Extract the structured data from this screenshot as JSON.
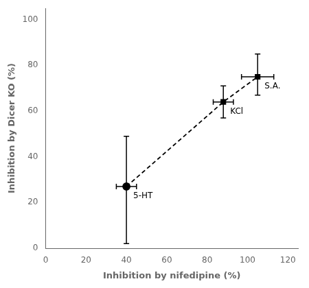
{
  "chart_data": {
    "type": "scatter",
    "xlabel": "Inhibition by nifedipine (%)",
    "ylabel": "Inhibition by Dicer KO (%)",
    "series": [
      {
        "color": "#000000",
        "line_style": "dashed",
        "marker": [
          "circle",
          "square",
          "square"
        ],
        "labels": [
          "5-HT",
          "KCl",
          "S.A."
        ],
        "x": [
          40,
          88,
          105
        ],
        "values": [
          27,
          64,
          75
        ],
        "xerr_minus": [
          5,
          5,
          8
        ],
        "xerr_plus": [
          5,
          5,
          8
        ],
        "yerr_minus": [
          25,
          7,
          8
        ],
        "yerr_plus": [
          22,
          7,
          10
        ]
      }
    ],
    "xlim": [
      0,
      125
    ],
    "xticks": [
      0,
      20,
      40,
      60,
      80,
      100,
      120
    ],
    "ylim": [
      0,
      105
    ],
    "yticks": [
      0,
      20,
      40,
      60,
      80,
      100
    ],
    "grid": false
  }
}
